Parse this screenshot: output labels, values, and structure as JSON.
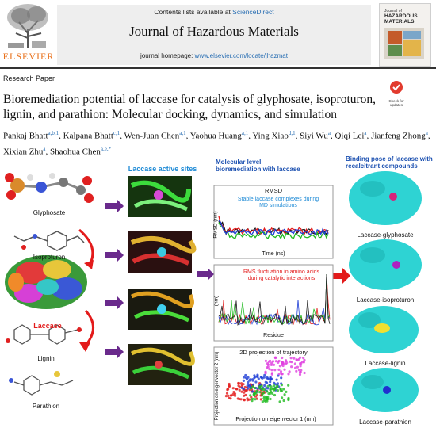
{
  "header": {
    "contents_prefix": "Contents lists available at ",
    "contents_link": "ScienceDirect",
    "journal_title": "Journal of Hazardous Materials",
    "homepage_prefix": "journal homepage: ",
    "homepage_link": "www.elsevier.com/locate/jhazmat",
    "publisher": "ELSEVIER",
    "cover_title_small": "Journal of",
    "cover_title": "HAZARDOUS MATERIALS"
  },
  "check_badge": {
    "line1": "Check for",
    "line2": "updates"
  },
  "article": {
    "type": "Research Paper",
    "title": "Bioremediation potential of laccase for catalysis of glyphosate, isoproturon, lignin, and parathion: Molecular docking, dynamics, and simulation",
    "authors": [
      {
        "name": "Pankaj Bhatt",
        "aff": "a,b,1"
      },
      {
        "name": "Kalpana Bhatt",
        "aff": "c,1"
      },
      {
        "name": "Wen-Juan Chen",
        "aff": "a,1"
      },
      {
        "name": "Yaohua Huang",
        "aff": "a,1"
      },
      {
        "name": "Ying Xiao",
        "aff": "d,1"
      },
      {
        "name": "Siyi Wu",
        "aff": "a"
      },
      {
        "name": "Qiqi Lei",
        "aff": "a"
      },
      {
        "name": "Jianfeng Zhong",
        "aff": "a"
      },
      {
        "name": "Xixian Zhu",
        "aff": "a"
      },
      {
        "name": "Shaohua Chen",
        "aff": "a,e,*"
      }
    ]
  },
  "graphical_abstract": {
    "active_sites_label": "Laccase active sites",
    "molecular_label": "Molecular level bioremediation with laccase",
    "binding_label": "Binding pose of laccase with recalcitrant compounds",
    "molecules": [
      "Glyphosate",
      "Isoproturon",
      "Laccase",
      "Lignin",
      "Parathion"
    ],
    "complexes": [
      "Laccase-glyphosate",
      "Laccase-isoproturon",
      "Laccase-lignin",
      "Laccase-parathion"
    ],
    "colors": {
      "accent_blue": "#1f8bd6",
      "laccase_red": "#e31b1b",
      "arrow_purple": "#6a2a8c",
      "protein_cyan": "#2ed3d3"
    }
  },
  "chart_data": [
    {
      "type": "line",
      "title": "RMSD",
      "annotation": "Stable laccase complexes during MD simulations",
      "xlabel": "Time (ns)",
      "ylabel": "RMSD (nm)",
      "series_colors": [
        "#1a1a1a",
        "#e31b1b",
        "#22bb22",
        "#1f3fd6"
      ]
    },
    {
      "type": "line",
      "title": "",
      "annotation": "RMS fluctuation in amino acids during catalytic interactions",
      "xlabel": "Residue",
      "ylabel": "(nm)",
      "series_colors": [
        "#e31b1b",
        "#1f3fd6",
        "#22bb22",
        "#1a1a1a"
      ]
    },
    {
      "type": "scatter",
      "title": "2D projection of trajectory",
      "xlabel": "Projection on eigenvector 1 (nm)",
      "ylabel": "Projection on eigenvector 2 (nm)",
      "series_colors": [
        "#e31b1b",
        "#1f3fd6",
        "#22bb22",
        "#e040e0"
      ]
    }
  ]
}
